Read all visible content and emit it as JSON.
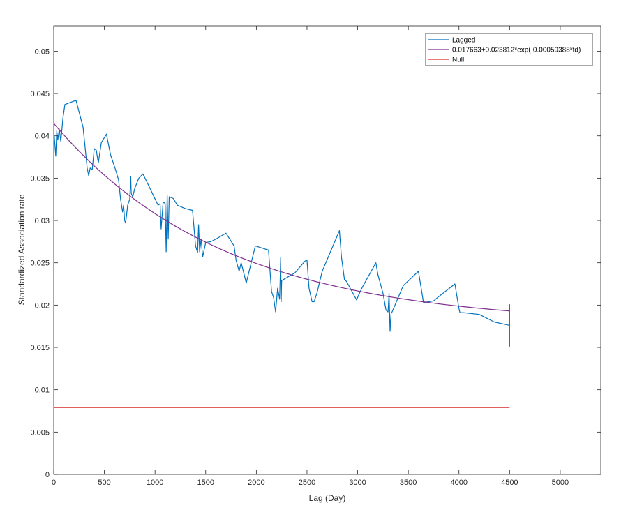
{
  "chart_data": {
    "type": "line",
    "xlabel": "Lag (Day)",
    "ylabel": "Standardized Association rate",
    "xlim": [
      0,
      5400
    ],
    "ylim": [
      0,
      0.053
    ],
    "xticks": [
      0,
      500,
      1000,
      1500,
      2000,
      2500,
      3000,
      3500,
      4000,
      4500,
      5000
    ],
    "yticks": [
      0,
      0.005,
      0.01,
      0.015,
      0.02,
      0.025,
      0.03,
      0.035,
      0.04,
      0.045,
      0.05
    ],
    "xtick_labels": [
      "0",
      "500",
      "1000",
      "1500",
      "2000",
      "2500",
      "3000",
      "3500",
      "4000",
      "4500",
      "5000"
    ],
    "ytick_labels": [
      "0",
      "0.005",
      "0.01",
      "0.015",
      "0.02",
      "0.025",
      "0.03",
      "0.035",
      "0.04",
      "0.045",
      "0.05"
    ],
    "grid": false,
    "legend_position": "top-right",
    "series": [
      {
        "name": "Lagged",
        "color": "#0072BD",
        "x": [
          5,
          20,
          30,
          40,
          55,
          70,
          90,
          110,
          220,
          290,
          330,
          345,
          360,
          380,
          400,
          420,
          440,
          470,
          520,
          560,
          610,
          640,
          660,
          680,
          690,
          700,
          710,
          730,
          750,
          760,
          765,
          780,
          800,
          840,
          880,
          930,
          990,
          1030,
          1050,
          1060,
          1080,
          1100,
          1110,
          1120,
          1130,
          1140,
          1180,
          1220,
          1300,
          1370,
          1400,
          1420,
          1430,
          1440,
          1455,
          1470,
          1500,
          1550,
          1600,
          1700,
          1780,
          1800,
          1830,
          1850,
          1880,
          1900,
          1990,
          2120,
          2150,
          2170,
          2190,
          2210,
          2230,
          2240,
          2245,
          2250,
          2380,
          2480,
          2500,
          2520,
          2550,
          2570,
          2600,
          2650,
          2820,
          2840,
          2870,
          2890,
          2990,
          3010,
          3050,
          3180,
          3200,
          3250,
          3280,
          3300,
          3310,
          3320,
          3330,
          3340,
          3450,
          3600,
          3650,
          3700,
          3750,
          3800,
          3960,
          4000,
          4010,
          4020,
          4050,
          4200,
          4350,
          4500
        ],
        "values": [
          0.04,
          0.0376,
          0.0406,
          0.0395,
          0.0408,
          0.0393,
          0.042,
          0.0437,
          0.0442,
          0.041,
          0.0362,
          0.0353,
          0.0362,
          0.036,
          0.0385,
          0.0383,
          0.0368,
          0.0392,
          0.0402,
          0.0378,
          0.036,
          0.0348,
          0.0325,
          0.031,
          0.0318,
          0.03,
          0.0297,
          0.0318,
          0.0325,
          0.0352,
          0.0332,
          0.0328,
          0.0338,
          0.035,
          0.0355,
          0.0343,
          0.0328,
          0.0318,
          0.032,
          0.029,
          0.0322,
          0.032,
          0.0263,
          0.033,
          0.0278,
          0.0328,
          0.0326,
          0.0318,
          0.0314,
          0.0312,
          0.027,
          0.0262,
          0.0295,
          0.0263,
          0.0278,
          0.0257,
          0.0274,
          0.0275,
          0.0278,
          0.0285,
          0.027,
          0.0253,
          0.024,
          0.025,
          0.0236,
          0.0226,
          0.027,
          0.0265,
          0.0216,
          0.0209,
          0.0192,
          0.022,
          0.0207,
          0.0256,
          0.0204,
          0.0229,
          0.0238,
          0.0252,
          0.0253,
          0.022,
          0.0204,
          0.0204,
          0.0215,
          0.024,
          0.0288,
          0.0257,
          0.023,
          0.0228,
          0.0206,
          0.0212,
          0.0222,
          0.025,
          0.0236,
          0.0214,
          0.0194,
          0.0192,
          0.0214,
          0.0169,
          0.019,
          0.0192,
          0.0223,
          0.024,
          0.0203,
          0.0204,
          0.0205,
          0.021,
          0.0225,
          0.0196,
          0.0191,
          0.0191,
          0.0191,
          0.0189,
          0.018,
          0.0176
        ],
        "end_bar": [
          0.0151,
          0.0201
        ]
      },
      {
        "name": "0.017663+0.023812*exp(-0.00059388*td)",
        "color": "#7E2F8E",
        "formula": {
          "a": 0.017663,
          "b": 0.023812,
          "k": -0.00059388
        },
        "x_range": [
          0,
          4500
        ]
      },
      {
        "name": "Null",
        "color": "#D62A2A",
        "x": [
          0,
          4500
        ],
        "values": [
          0.0079,
          0.0079
        ]
      }
    ]
  }
}
